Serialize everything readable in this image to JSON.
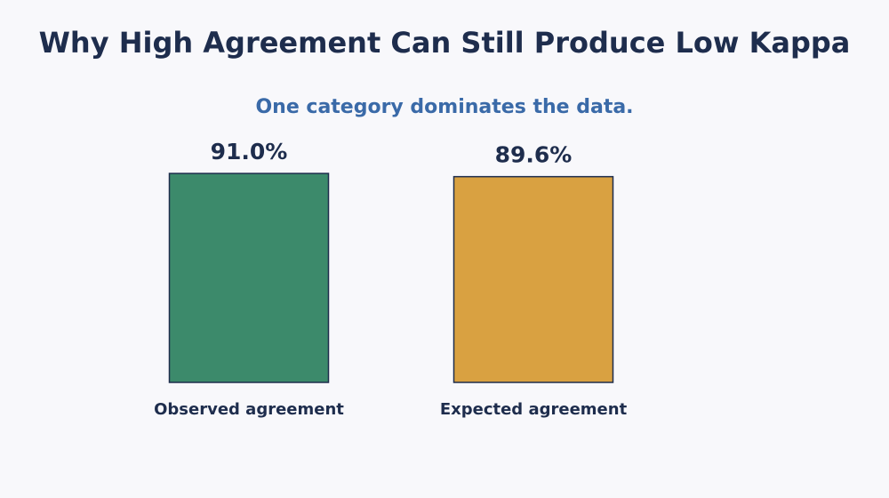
{
  "chart_data": {
    "type": "bar",
    "title": "Why High Agreement Can Still Produce Low Kappa",
    "subtitle": "One category dominates the data.",
    "categories": [
      "Observed agreement",
      "Expected agreement"
    ],
    "values": [
      91.0,
      89.6
    ],
    "value_labels": [
      "91.0%",
      "89.6%"
    ],
    "colors": [
      "#3c8a6b",
      "#d9a141"
    ]
  }
}
